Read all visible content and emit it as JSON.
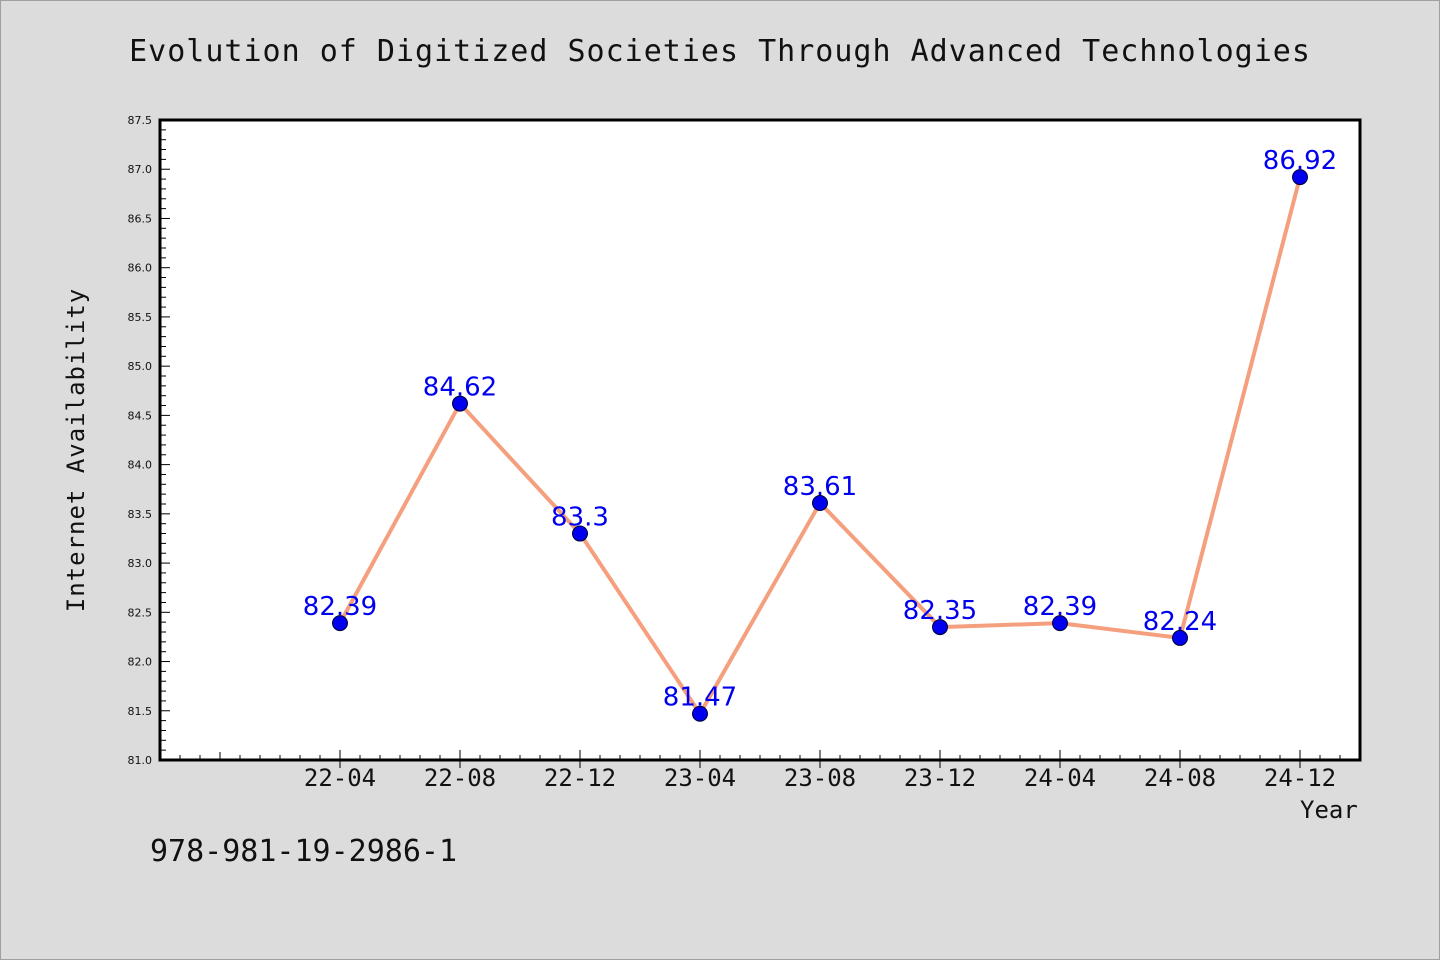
{
  "chart_data": {
    "type": "line",
    "title": "Evolution of Digitized Societies Through Advanced Technologies",
    "xlabel": "Year",
    "ylabel": "Internet Availability",
    "categories": [
      "22-04",
      "22-08",
      "22-12",
      "23-04",
      "23-08",
      "23-12",
      "24-04",
      "24-08",
      "24-12"
    ],
    "series": [
      {
        "values": [
          82.39,
          84.62,
          83.3,
          81.47,
          83.61,
          82.35,
          82.39,
          82.24,
          86.92
        ],
        "data_labels": [
          "82.39",
          "84.62",
          "83.3",
          "81.47",
          "83.61",
          "82.35",
          "82.39",
          "82.24",
          "86.92"
        ],
        "line_color": "#f4a07e",
        "marker_color": "#0000ee",
        "label_color": "#0000ee"
      }
    ],
    "ylim": [
      81.0,
      87.5
    ],
    "yticks": [
      "81.0",
      "81.5",
      "82.0",
      "82.5",
      "83.0",
      "83.5",
      "84.0",
      "84.5",
      "85.0",
      "85.5",
      "86.0",
      "86.5",
      "87.0",
      "87.5"
    ],
    "grid": false,
    "legend": "none"
  },
  "footer": {
    "code": "978-981-19-2986-1"
  },
  "colors": {
    "background": "#dcdcdc",
    "plot_background": "#ffffff",
    "axis": "#000000"
  }
}
